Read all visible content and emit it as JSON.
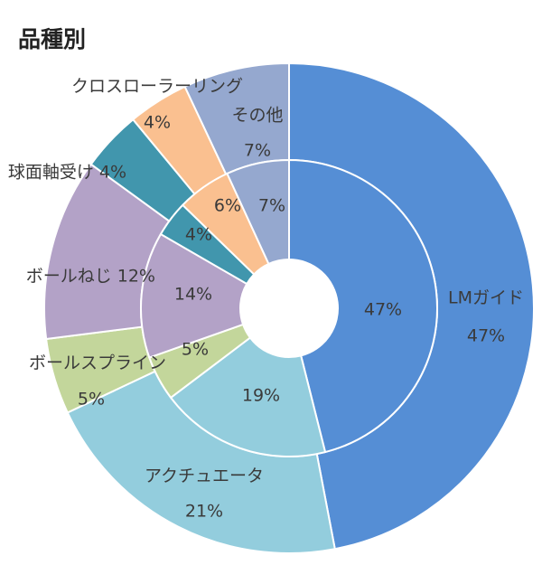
{
  "chart_data": {
    "type": "donut",
    "title": "品種別",
    "categories": [
      "LMガイド",
      "アクチュエータ",
      "ボールスプライン",
      "ボールねじ",
      "球面軸受け",
      "クロスローラーリング",
      "その他"
    ],
    "series": [
      {
        "ring": "outer",
        "values": [
          47,
          21,
          5,
          12,
          4,
          4,
          7
        ],
        "value_labels": [
          "47%",
          "21%",
          "5%",
          "12%",
          "4%",
          "4%",
          "7%"
        ]
      },
      {
        "ring": "inner",
        "values": [
          47,
          19,
          5,
          14,
          4,
          6,
          7
        ],
        "value_labels": [
          "47%",
          "19%",
          "5%",
          "14%",
          "4%",
          "6%",
          "7%"
        ]
      }
    ],
    "colors": [
      "#558ed5",
      "#93cddd",
      "#c3d69b",
      "#b3a2c7",
      "#4196ad",
      "#fac090",
      "#95a8cf"
    ]
  }
}
